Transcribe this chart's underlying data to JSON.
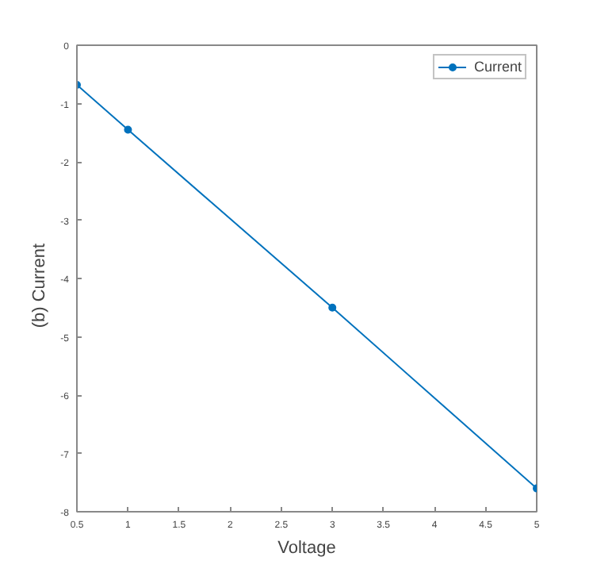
{
  "chart_data": {
    "type": "line",
    "xlabel": "Voltage",
    "ylabel": "(b)    Current",
    "x": [
      0.5,
      1,
      3,
      5
    ],
    "series": [
      {
        "name": "Current",
        "color": "#0072bd",
        "values": [
          -0.68,
          -1.45,
          -4.5,
          -7.6
        ]
      }
    ],
    "xlim": [
      0.5,
      5
    ],
    "ylim": [
      -8,
      0
    ],
    "xticks": [
      0.5,
      1,
      1.5,
      2,
      2.5,
      3,
      3.5,
      4,
      4.5,
      5
    ],
    "yticks": [
      -8,
      -7,
      -6,
      -5,
      -4,
      -3,
      -2,
      -1,
      0
    ],
    "grid": false,
    "legend": "top right",
    "marker": "circle",
    "line_style": "solid"
  }
}
